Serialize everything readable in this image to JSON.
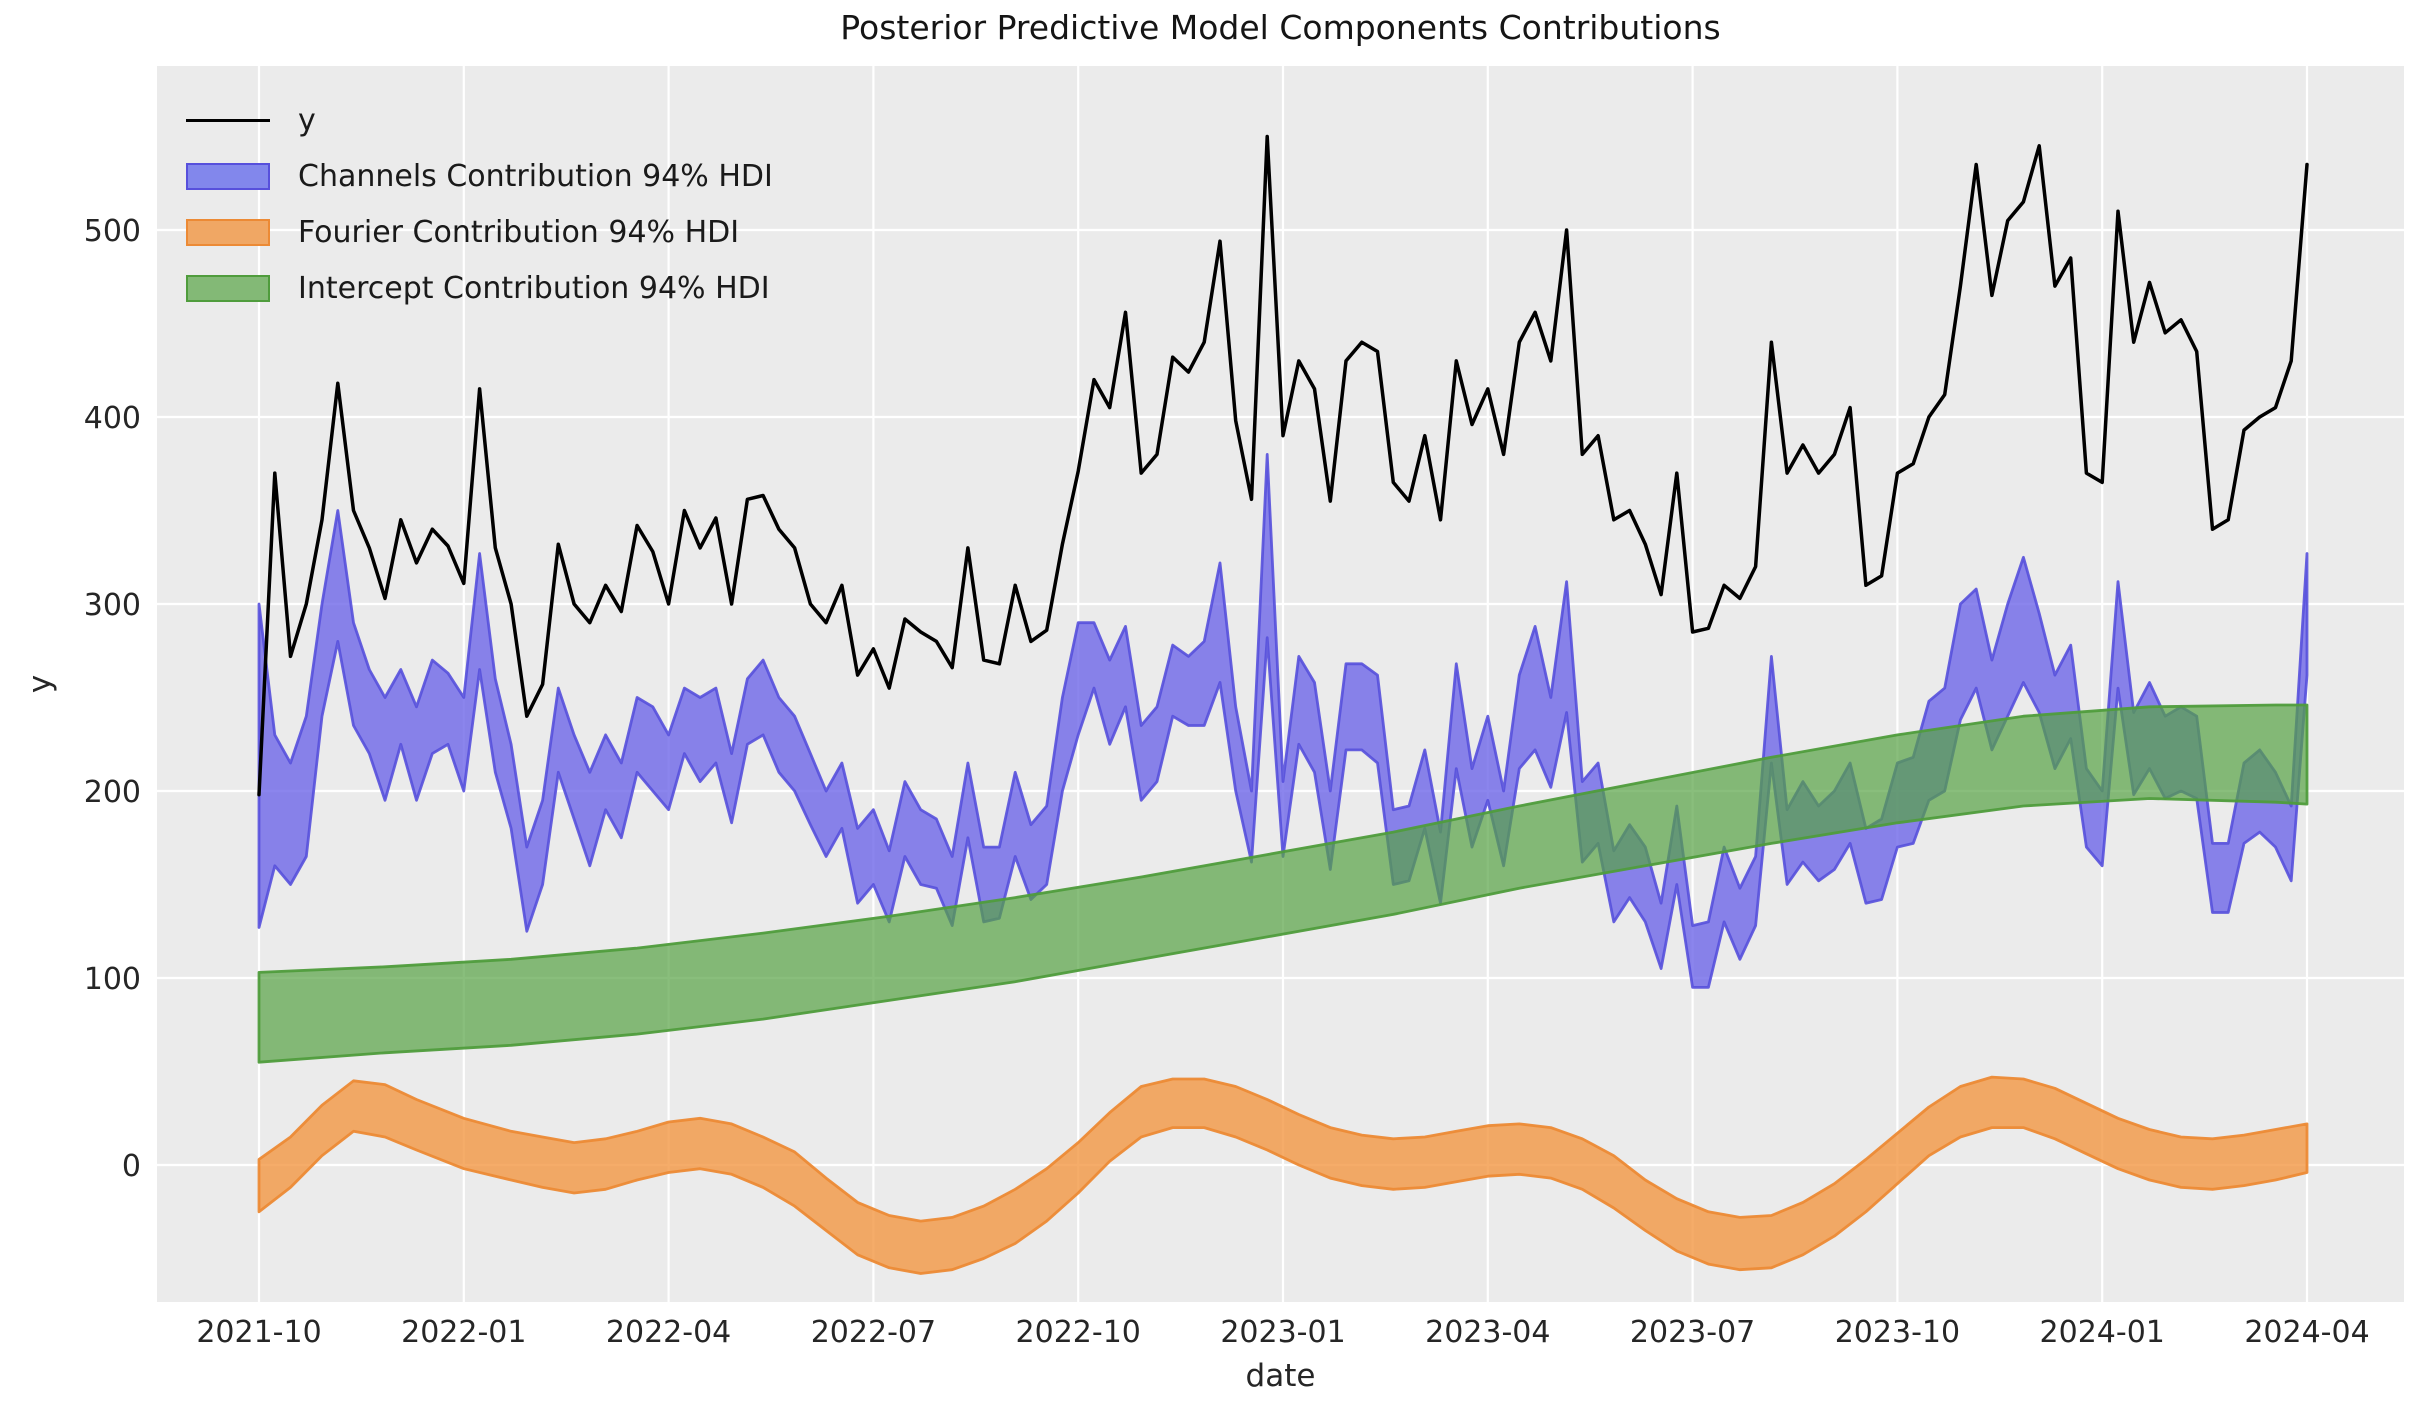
{
  "chart_data": {
    "type": "line",
    "title": "Posterior Predictive Model Components Contributions",
    "xlabel": "date",
    "ylabel": "y",
    "background": "#ebebeb",
    "grid": true,
    "legend_position": "upper left",
    "x_unit": "weeks since first observation (weekly data)",
    "x_range": [
      "2021-10",
      "2024-04"
    ],
    "ylim": [
      -75,
      588
    ],
    "x_tick_labels": [
      "2021-10",
      "2022-01",
      "2022-04",
      "2022-07",
      "2022-10",
      "2023-01",
      "2023-04",
      "2023-07",
      "2023-10",
      "2024-01",
      "2024-04"
    ],
    "x_tick_weeks": [
      0,
      13,
      26,
      39,
      52,
      65,
      78,
      91,
      104,
      117,
      130
    ],
    "y_tick_values": [
      0,
      100,
      200,
      300,
      400,
      500
    ],
    "series": [
      {
        "name": "Fourier Contribution 94% HDI",
        "type": "band",
        "fill": "#f2953f",
        "fill_opacity": 0.78,
        "edge": "#ec8a35",
        "edge_opacity": 0.95,
        "weeks": [
          0,
          2,
          4,
          6,
          8,
          10,
          13,
          16,
          18,
          20,
          22,
          24,
          26,
          28,
          30,
          32,
          34,
          36,
          38,
          40,
          42,
          44,
          46,
          48,
          50,
          52,
          54,
          56,
          58,
          60,
          62,
          64,
          66,
          68,
          70,
          72,
          74,
          76,
          78,
          80,
          82,
          84,
          86,
          88,
          90,
          92,
          94,
          96,
          98,
          100,
          102,
          104,
          106,
          108,
          110,
          112,
          114,
          116,
          118,
          120,
          122,
          124,
          126,
          128,
          130
        ],
        "lower": [
          -25,
          -12,
          5,
          18,
          15,
          8,
          -2,
          -8,
          -12,
          -15,
          -13,
          -8,
          -4,
          -2,
          -5,
          -12,
          -22,
          -35,
          -48,
          -55,
          -58,
          -56,
          -50,
          -42,
          -30,
          -15,
          2,
          15,
          20,
          20,
          15,
          8,
          0,
          -7,
          -11,
          -13,
          -12,
          -9,
          -6,
          -5,
          -7,
          -13,
          -23,
          -35,
          -46,
          -53,
          -56,
          -55,
          -48,
          -38,
          -25,
          -10,
          5,
          15,
          20,
          20,
          14,
          6,
          -2,
          -8,
          -12,
          -13,
          -11,
          -8,
          -4
        ],
        "upper": [
          3,
          15,
          32,
          45,
          43,
          35,
          25,
          18,
          15,
          12,
          14,
          18,
          23,
          25,
          22,
          15,
          7,
          -7,
          -20,
          -27,
          -30,
          -28,
          -22,
          -13,
          -2,
          12,
          28,
          42,
          46,
          46,
          42,
          35,
          27,
          20,
          16,
          14,
          15,
          18,
          21,
          22,
          20,
          14,
          5,
          -8,
          -18,
          -25,
          -28,
          -27,
          -20,
          -10,
          3,
          17,
          31,
          42,
          47,
          46,
          41,
          33,
          25,
          19,
          15,
          14,
          16,
          19,
          22
        ]
      },
      {
        "name": "Channels Contribution 94% HDI",
        "type": "band",
        "fill": "#6a63e8",
        "fill_opacity": 0.78,
        "edge": "#5750dc",
        "edge_opacity": 0.9,
        "weeks": null,
        "lower": [
          127,
          160,
          150,
          165,
          240,
          280,
          235,
          220,
          195,
          225,
          195,
          220,
          225,
          200,
          265,
          210,
          180,
          125,
          150,
          210,
          185,
          160,
          190,
          175,
          210,
          200,
          190,
          220,
          205,
          215,
          183,
          225,
          230,
          210,
          200,
          182,
          165,
          180,
          140,
          150,
          130,
          165,
          150,
          148,
          128,
          175,
          130,
          132,
          165,
          142,
          150,
          200,
          230,
          255,
          225,
          245,
          195,
          205,
          240,
          235,
          235,
          258,
          200,
          162,
          282,
          165,
          225,
          210,
          158,
          222,
          222,
          215,
          150,
          152,
          180,
          140,
          212,
          170,
          195,
          160,
          212,
          222,
          202,
          242,
          162,
          172,
          130,
          143,
          130,
          105,
          150,
          95,
          95,
          130,
          110,
          128,
          215,
          150,
          162,
          152,
          158,
          172,
          140,
          142,
          170,
          172,
          195,
          200,
          238,
          255,
          222,
          240,
          258,
          242,
          212,
          228,
          170,
          160,
          255,
          198,
          212,
          196,
          200,
          196,
          135,
          135,
          172,
          178,
          170,
          152,
          262
        ],
        "upper": [
          300,
          230,
          215,
          240,
          300,
          350,
          290,
          265,
          250,
          265,
          245,
          270,
          263,
          250,
          327,
          260,
          225,
          170,
          195,
          255,
          230,
          210,
          230,
          215,
          250,
          245,
          230,
          255,
          250,
          255,
          220,
          260,
          270,
          250,
          240,
          220,
          200,
          215,
          180,
          190,
          168,
          205,
          190,
          185,
          165,
          215,
          170,
          170,
          210,
          182,
          192,
          250,
          290,
          290,
          270,
          288,
          235,
          245,
          278,
          272,
          280,
          322,
          245,
          200,
          380,
          205,
          272,
          258,
          200,
          268,
          268,
          262,
          190,
          192,
          222,
          178,
          268,
          212,
          240,
          200,
          262,
          288,
          250,
          312,
          205,
          215,
          168,
          182,
          170,
          140,
          192,
          128,
          130,
          170,
          148,
          165,
          272,
          190,
          205,
          192,
          200,
          215,
          180,
          185,
          215,
          218,
          248,
          255,
          300,
          308,
          270,
          300,
          325,
          295,
          262,
          278,
          212,
          200,
          312,
          242,
          258,
          240,
          245,
          240,
          172,
          172,
          215,
          222,
          210,
          192,
          327
        ]
      },
      {
        "name": "Intercept Contribution 94% HDI",
        "type": "band",
        "fill": "#57a344",
        "fill_opacity": 0.7,
        "edge": "#4f9c3c",
        "edge_opacity": 0.95,
        "weeks": [
          0,
          8,
          16,
          24,
          32,
          40,
          48,
          56,
          64,
          72,
          80,
          88,
          96,
          104,
          112,
          120,
          128,
          130
        ],
        "lower": [
          55,
          60,
          64,
          70,
          78,
          88,
          98,
          110,
          122,
          134,
          148,
          160,
          172,
          183,
          192,
          196,
          194,
          193
        ],
        "upper": [
          103,
          106,
          110,
          116,
          124,
          133,
          143,
          154,
          166,
          178,
          192,
          205,
          218,
          230,
          240,
          245,
          246,
          246
        ]
      },
      {
        "name": "y",
        "type": "line",
        "color": "#000000",
        "weeks": null,
        "values": [
          198,
          370,
          272,
          300,
          345,
          418,
          350,
          330,
          303,
          345,
          322,
          340,
          331,
          311,
          415,
          330,
          300,
          240,
          257,
          332,
          300,
          290,
          310,
          296,
          342,
          328,
          300,
          350,
          330,
          346,
          300,
          356,
          358,
          340,
          330,
          300,
          290,
          310,
          262,
          276,
          255,
          292,
          285,
          280,
          266,
          330,
          270,
          268,
          310,
          280,
          286,
          332,
          371,
          420,
          405,
          456,
          370,
          380,
          432,
          424,
          440,
          494,
          398,
          356,
          550,
          390,
          430,
          415,
          355,
          430,
          440,
          435,
          365,
          355,
          390,
          345,
          430,
          396,
          415,
          380,
          440,
          456,
          430,
          500,
          380,
          390,
          345,
          350,
          332,
          305,
          370,
          285,
          287,
          310,
          303,
          320,
          440,
          370,
          385,
          370,
          380,
          405,
          310,
          315,
          370,
          375,
          400,
          412,
          470,
          535,
          465,
          505,
          515,
          545,
          470,
          485,
          370,
          365,
          510,
          440,
          472,
          445,
          452,
          435,
          340,
          345,
          393,
          400,
          405,
          430,
          535
        ]
      }
    ],
    "legend": [
      {
        "label": "y",
        "swatch": "line",
        "color": "#000000",
        "border": "#000000"
      },
      {
        "label": "Channels Contribution 94% HDI",
        "swatch": "rect",
        "color": "#8287ec",
        "border": "#5750dc"
      },
      {
        "label": "Fourier Contribution 94% HDI",
        "swatch": "rect",
        "color": "#f0a764",
        "border": "#ec8a35"
      },
      {
        "label": "Intercept Contribution 94% HDI",
        "swatch": "rect",
        "color": "#83b976",
        "border": "#4f9c3c"
      }
    ]
  }
}
